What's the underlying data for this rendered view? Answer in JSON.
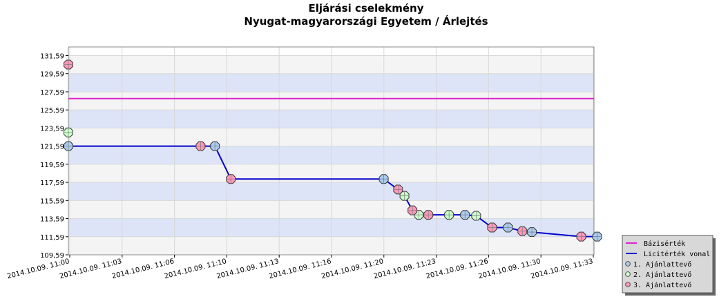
{
  "chart_data": {
    "type": "line",
    "title": "Eljárási cselekmény",
    "subtitle": "Nyugat-magyarországi Egyetem / Árlejtés",
    "xlabel": "",
    "ylabel": "",
    "ylim": [
      109.59,
      131.59
    ],
    "y_ticks": [
      "109,59",
      "111,59",
      "113,59",
      "115,59",
      "117,59",
      "119,59",
      "121,59",
      "123,59",
      "125,59",
      "127,59",
      "129,59",
      "131,59"
    ],
    "x_tick_labels": [
      "2014.10.09. 11:00",
      "2014.10.09. 11:03",
      "2014.10.09. 11:06",
      "2014.10.09. 11:10",
      "2014.10.09. 11:13",
      "2014.10.09. 11:16",
      "2014.10.09. 11:20",
      "2014.10.09. 11:23",
      "2014.10.09. 11:26",
      "2014.10.09. 11:30",
      "2014.10.09. 11:33"
    ],
    "x_range_minutes": [
      0,
      33
    ],
    "grid": true,
    "legend_position": "bottom-right",
    "legend": [
      "Bázisérték",
      "Licitérték vonal",
      "1. Ajánlattevő",
      "2. Ajánlattevő",
      "3. Ajánlattevő"
    ],
    "colors": {
      "base": "#dd22cc",
      "line": "#0000cc",
      "bidder1": "#aaccee",
      "bidder2": "#ccffcc",
      "bidder3": "#ff99bb",
      "band": "#dde4f8",
      "band_alt": "#f4f4f4"
    },
    "base_value": 126.84,
    "bid_line": [
      {
        "t": 0,
        "y": 121.59
      },
      {
        "t": 9.2,
        "y": 121.59
      },
      {
        "t": 10.2,
        "y": 117.96
      },
      {
        "t": 19.8,
        "y": 117.96
      },
      {
        "t": 20.7,
        "y": 116.8
      },
      {
        "t": 21.1,
        "y": 116.1
      },
      {
        "t": 21.6,
        "y": 114.5
      },
      {
        "t": 22.0,
        "y": 114.0
      },
      {
        "t": 22.6,
        "y": 114.0
      },
      {
        "t": 23.9,
        "y": 114.0
      },
      {
        "t": 24.9,
        "y": 114.0
      },
      {
        "t": 25.6,
        "y": 113.9
      },
      {
        "t": 26.6,
        "y": 112.6
      },
      {
        "t": 27.6,
        "y": 112.6
      },
      {
        "t": 28.5,
        "y": 112.2
      },
      {
        "t": 29.1,
        "y": 112.1
      },
      {
        "t": 32.2,
        "y": 111.6
      },
      {
        "t": 33.2,
        "y": 111.6
      }
    ],
    "series": [
      {
        "name": "1. Ajánlattevő",
        "points": [
          {
            "t": 0,
            "y": 121.59
          },
          {
            "t": 9.2,
            "y": 121.59
          },
          {
            "t": 19.8,
            "y": 117.96
          },
          {
            "t": 24.9,
            "y": 114.0
          },
          {
            "t": 27.6,
            "y": 112.6
          },
          {
            "t": 29.1,
            "y": 112.1
          },
          {
            "t": 33.2,
            "y": 111.6
          }
        ]
      },
      {
        "name": "2. Ajánlattevő",
        "points": [
          {
            "t": 0,
            "y": 123.1
          },
          {
            "t": 21.1,
            "y": 116.1
          },
          {
            "t": 22.0,
            "y": 114.0
          },
          {
            "t": 23.9,
            "y": 114.0
          },
          {
            "t": 25.6,
            "y": 113.9
          }
        ]
      },
      {
        "name": "3. Ajánlattevő",
        "points": [
          {
            "t": 0,
            "y": 130.6
          },
          {
            "t": 8.3,
            "y": 121.59
          },
          {
            "t": 10.2,
            "y": 117.96
          },
          {
            "t": 20.7,
            "y": 116.8
          },
          {
            "t": 21.6,
            "y": 114.5
          },
          {
            "t": 22.6,
            "y": 114.0
          },
          {
            "t": 26.6,
            "y": 112.6
          },
          {
            "t": 28.5,
            "y": 112.2
          },
          {
            "t": 32.2,
            "y": 111.6
          }
        ]
      }
    ]
  }
}
